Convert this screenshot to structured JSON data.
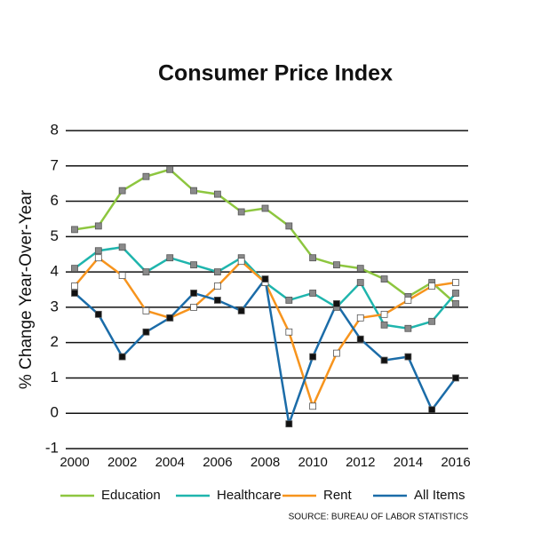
{
  "chart_data": {
    "type": "line",
    "title": "Consumer Price Index",
    "y_label": "% Change Year-Over-Year",
    "source": "SOURCE: BUREAU OF LABOR STATISTICS",
    "x": [
      2000,
      2001,
      2002,
      2003,
      2004,
      2005,
      2006,
      2007,
      2008,
      2009,
      2010,
      2011,
      2012,
      2013,
      2014,
      2015,
      2016
    ],
    "xlim": [
      2000,
      2016
    ],
    "xticks": [
      2000,
      2002,
      2004,
      2006,
      2008,
      2010,
      2012,
      2014,
      2016
    ],
    "ylim": [
      -1,
      8
    ],
    "yticks": [
      -1,
      0,
      1,
      2,
      3,
      4,
      5,
      6,
      7,
      8
    ],
    "grid": true,
    "legend": "bottom",
    "series": [
      {
        "name": "Education",
        "color": "#8dc63f",
        "marker_color": "#8a8a8a",
        "values": [
          5.2,
          5.3,
          6.3,
          6.7,
          6.9,
          6.3,
          6.2,
          5.7,
          5.8,
          5.3,
          4.4,
          4.2,
          4.1,
          3.8,
          3.3,
          3.7,
          3.1
        ]
      },
      {
        "name": "Healthcare",
        "color": "#1fb5ad",
        "marker_color": "#8a8a8a",
        "values": [
          4.1,
          4.6,
          4.7,
          4.0,
          4.4,
          4.2,
          4.0,
          4.4,
          3.7,
          3.2,
          3.4,
          3.0,
          3.7,
          2.5,
          2.4,
          2.6,
          3.4
        ]
      },
      {
        "name": "Rent",
        "color": "#f7941d",
        "marker_color": "#ffffff",
        "values": [
          3.6,
          4.4,
          3.9,
          2.9,
          2.7,
          3.0,
          3.6,
          4.3,
          3.7,
          2.3,
          0.2,
          1.7,
          2.7,
          2.8,
          3.2,
          3.6,
          3.7
        ]
      },
      {
        "name": "All Items",
        "color": "#1b6ca8",
        "marker_color": "#111111",
        "values": [
          3.4,
          2.8,
          1.6,
          2.3,
          2.7,
          3.4,
          3.2,
          2.9,
          3.8,
          -0.3,
          1.6,
          3.1,
          2.1,
          1.5,
          1.6,
          0.1,
          1.0
        ]
      }
    ]
  }
}
